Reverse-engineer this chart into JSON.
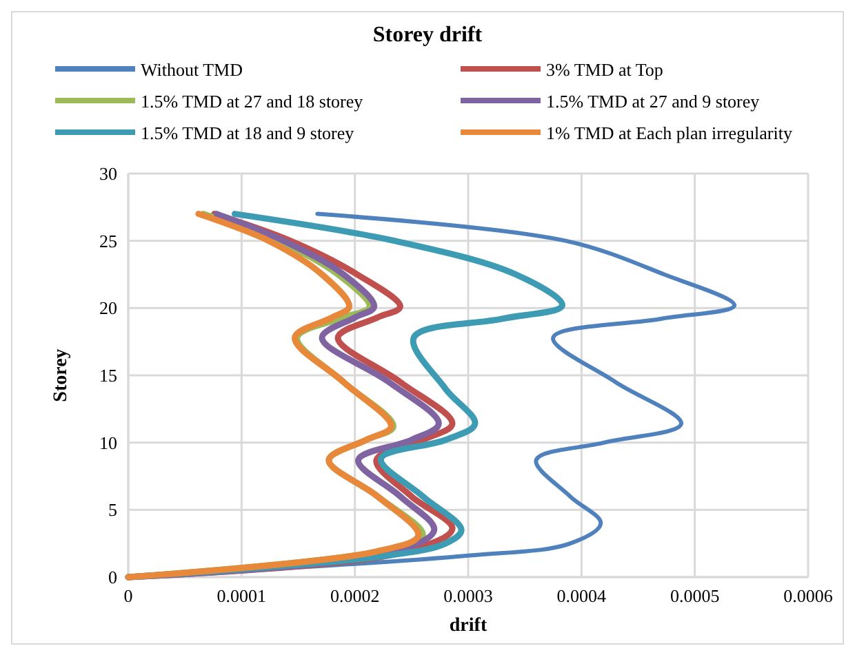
{
  "chart_data": {
    "type": "line",
    "title": "Storey drift",
    "xlabel": "drift",
    "ylabel": "Storey",
    "xlim": [
      0,
      0.0006
    ],
    "xticks": [
      0,
      0.0001,
      0.0002,
      0.0003,
      0.0004,
      0.0005,
      0.0006
    ],
    "ylim": [
      0,
      30
    ],
    "yticks": [
      0,
      5,
      10,
      15,
      20,
      25,
      30
    ],
    "grid": true,
    "legend": "top",
    "marker": "none",
    "line_style": "solid",
    "series": [
      {
        "name": "Without TMD",
        "color": "#4f81bd",
        "x": [
          0,
          0.0003,
          0.00039,
          0.000417,
          0.00039,
          0.00036,
          0.00042,
          0.000488,
          0.00043,
          0.000375,
          0.00047,
          0.000535,
          0.000473,
          0.000386,
          0.000167
        ],
        "values": [
          0,
          1.6,
          2.5,
          4,
          6,
          8.7,
          10,
          11.4,
          14.5,
          17.8,
          19.2,
          20.2,
          22.5,
          25,
          27
        ]
      },
      {
        "name": "3% TMD at Top",
        "color": "#c0504d",
        "x": [
          0,
          0.00024,
          0.000286,
          0.00025,
          0.000219,
          0.00026,
          0.000286,
          0.00024,
          0.000185,
          0.00022,
          0.00024,
          0.000202,
          0.000143,
          7.6e-05
        ],
        "values": [
          0,
          1.8,
          3.6,
          6,
          8.7,
          10.2,
          11.4,
          14.5,
          17.8,
          19.3,
          20.1,
          22.5,
          25,
          27
        ]
      },
      {
        "name": "1.5% TMD at 27 and 18 storey",
        "color": "#9bbb59",
        "x": [
          0,
          0.00022,
          0.00026,
          0.00022,
          0.000177,
          0.00021,
          0.000234,
          0.00019,
          0.000149,
          0.00019,
          0.000213,
          0.000185,
          0.000132,
          6.6e-05
        ],
        "values": [
          0,
          1.9,
          3.1,
          6,
          8.7,
          10.2,
          11.2,
          14.5,
          17.8,
          19.3,
          20.1,
          22.5,
          25,
          27
        ]
      },
      {
        "name": "1.5% TMD at 27 and 9 storey",
        "color": "#8064a2",
        "x": [
          0,
          0.00023,
          0.00027,
          0.00024,
          0.000203,
          0.00025,
          0.000274,
          0.00023,
          0.000171,
          0.0002,
          0.000217,
          0.00019,
          0.000137,
          7.8e-05
        ],
        "values": [
          0,
          1.8,
          3.5,
          6,
          8.7,
          10.2,
          11.4,
          14.5,
          17.8,
          19.3,
          20.1,
          22.5,
          25,
          27
        ]
      },
      {
        "name": "1.5% TMD at 18 and 9 storey",
        "color": "#3d9bb3",
        "x": [
          0,
          0.00022,
          0.00028,
          0.000294,
          0.00026,
          0.000223,
          0.00028,
          0.000306,
          0.00028,
          0.000252,
          0.00033,
          0.000383,
          0.000342,
          0.000235,
          9.4e-05
        ],
        "values": [
          0,
          1.5,
          2.5,
          3.5,
          6,
          8.8,
          10.2,
          11.4,
          14,
          17.8,
          19.2,
          20.2,
          22.5,
          25,
          27
        ]
      },
      {
        "name": "1% TMD at Each plan irregularity",
        "color": "#e8883a",
        "x": [
          0,
          0.000219,
          0.000256,
          0.00022,
          0.000177,
          0.00021,
          0.000232,
          0.00019,
          0.000147,
          0.00018,
          0.000195,
          0.000171,
          0.000124,
          6.2e-05
        ],
        "values": [
          0,
          1.9,
          3.1,
          6,
          8.7,
          10.2,
          11.2,
          14.5,
          17.8,
          19.3,
          20.1,
          22.5,
          25,
          27
        ]
      }
    ]
  }
}
